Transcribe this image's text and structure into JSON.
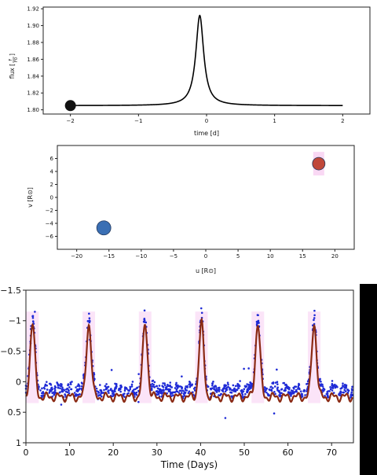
{
  "chart_data": [
    {
      "type": "line",
      "xlabel": "time [d]",
      "ylabel_main": "flux [",
      "ylabel_frac_num": "F",
      "ylabel_frac_den": "F0",
      "ylabel_close": "]",
      "xlim": [
        -2.4,
        2.4
      ],
      "ylim": [
        1.795,
        1.922
      ],
      "xticks": [
        -2,
        -1,
        0,
        1,
        2
      ],
      "yticks": [
        1.8,
        1.82,
        1.84,
        1.86,
        1.88,
        1.9,
        1.92
      ],
      "xtick_labels": [
        "−2",
        "−1",
        "0",
        "1",
        "2"
      ],
      "ytick_labels": [
        "1.80",
        "1.82",
        "1.84",
        "1.86",
        "1.88",
        "1.90",
        "1.92"
      ],
      "baseline": 1.805,
      "peak": {
        "t": -0.1,
        "flux": 1.912,
        "width_d": 0.07
      },
      "marker": {
        "t": -2.0,
        "flux": 1.805,
        "color": "#111111"
      },
      "line_color": "#000000"
    },
    {
      "type": "scatter",
      "xlabel": "u [R⊙]",
      "ylabel": "v [R⊙]",
      "xlim": [
        -23,
        23
      ],
      "ylim": [
        -8,
        8
      ],
      "xticks": [
        -20,
        -15,
        -10,
        -5,
        0,
        5,
        10,
        15,
        20
      ],
      "yticks": [
        -6,
        -4,
        -2,
        0,
        2,
        4,
        6
      ],
      "xtick_labels": [
        "−20",
        "−15",
        "−10",
        "−5",
        "0",
        "5",
        "10",
        "15",
        "20"
      ],
      "ytick_labels": [
        "−6",
        "−4",
        "−2",
        "0",
        "2",
        "4",
        "6"
      ],
      "points": [
        {
          "u": -15.8,
          "v": -4.7,
          "color": "#3a6fb4"
        },
        {
          "u": 17.5,
          "v": 5.2,
          "color": "#c0483a"
        }
      ]
    },
    {
      "type": "line",
      "xlabel": "Time (Days)",
      "xlim": [
        0,
        75
      ],
      "ylim": [
        1.0,
        -1.5
      ],
      "xticks": [
        0,
        10,
        20,
        30,
        40,
        50,
        60,
        70
      ],
      "yticks": [
        1.0,
        0.5,
        0.0,
        -0.5,
        -1.0,
        -1.5
      ],
      "xtick_labels": [
        "0",
        "10",
        "20",
        "30",
        "40",
        "50",
        "60",
        "70"
      ],
      "ytick_labels": [
        "1",
        "0.5",
        "0",
        "−0.5",
        "−1",
        "−1.5"
      ],
      "period_days": 12.9,
      "peak_times": [
        1.5,
        14.4,
        27.3,
        40.2,
        53.1,
        66.0
      ],
      "peak_level": -0.95,
      "trough_level": 0.25,
      "model_color": "#8b2a14",
      "point_color": "#1f2bd6"
    }
  ]
}
